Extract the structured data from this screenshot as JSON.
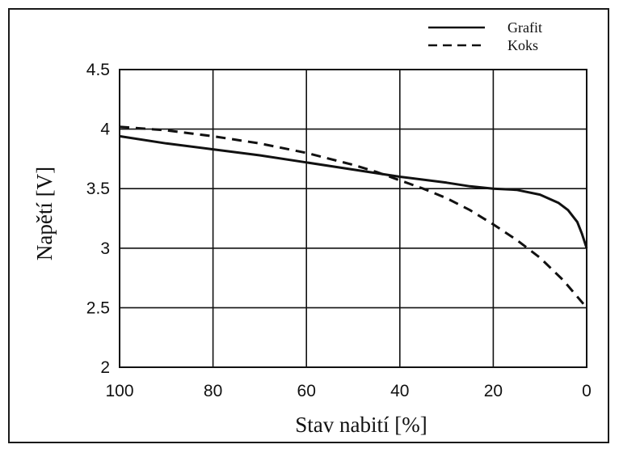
{
  "chart_data": {
    "type": "line",
    "xlabel": "Stav nabití [%]",
    "ylabel": "Napětí [V]",
    "xlim": [
      100,
      0
    ],
    "ylim": [
      2,
      4.5
    ],
    "x_reversed": true,
    "x_ticks": [
      "100",
      "80",
      "60",
      "40",
      "20",
      "0"
    ],
    "y_ticks": [
      "2",
      "2.5",
      "3",
      "3.5",
      "4",
      "4.5"
    ],
    "grid": true,
    "legend_position": "top-right",
    "series": [
      {
        "name": "Grafit",
        "style": "solid",
        "color": "#111111",
        "x": [
          100,
          90,
          80,
          70,
          60,
          50,
          40,
          30,
          25,
          20,
          15,
          10,
          6,
          4,
          2,
          1,
          0
        ],
        "y": [
          3.94,
          3.88,
          3.83,
          3.78,
          3.72,
          3.66,
          3.6,
          3.55,
          3.52,
          3.5,
          3.49,
          3.45,
          3.38,
          3.32,
          3.22,
          3.12,
          3.0
        ]
      },
      {
        "name": "Koks",
        "style": "dashed",
        "color": "#111111",
        "x": [
          100,
          90,
          80,
          70,
          60,
          50,
          45,
          40,
          35,
          30,
          25,
          20,
          15,
          10,
          5,
          0
        ],
        "y": [
          4.02,
          3.99,
          3.94,
          3.88,
          3.8,
          3.7,
          3.64,
          3.57,
          3.5,
          3.42,
          3.32,
          3.2,
          3.07,
          2.92,
          2.73,
          2.5
        ]
      }
    ]
  }
}
